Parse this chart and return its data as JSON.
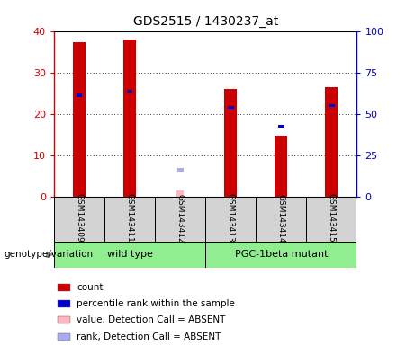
{
  "title": "GDS2515 / 1430237_at",
  "samples": [
    "GSM143409",
    "GSM143411",
    "GSM143412",
    "GSM143413",
    "GSM143414",
    "GSM143415"
  ],
  "count_values": [
    37.2,
    38.0,
    null,
    26.0,
    14.7,
    26.5
  ],
  "rank_values": [
    24.5,
    25.5,
    null,
    21.5,
    17.0,
    22.0
  ],
  "absent_value": [
    null,
    null,
    1.5,
    null,
    null,
    null
  ],
  "absent_rank": [
    null,
    null,
    6.5,
    null,
    null,
    null
  ],
  "bar_color": "#CC0000",
  "rank_color": "#0000CC",
  "absent_bar_color": "#FFB6C1",
  "absent_rank_color": "#AAAAEE",
  "ylim_left": [
    0,
    40
  ],
  "ylim_right": [
    0,
    100
  ],
  "yticks_left": [
    0,
    10,
    20,
    30,
    40
  ],
  "yticks_right": [
    0,
    25,
    50,
    75,
    100
  ],
  "genotype_label": "genotype/variation",
  "wt_label": "wild type",
  "pgc_label": "PGC-1beta mutant",
  "group_color": "#90EE90",
  "sample_box_color": "#D3D3D3",
  "legend_items": [
    {
      "color": "#CC0000",
      "label": "count"
    },
    {
      "color": "#0000CC",
      "label": "percentile rank within the sample"
    },
    {
      "color": "#FFB6C1",
      "label": "value, Detection Call = ABSENT"
    },
    {
      "color": "#AAAAEE",
      "label": "rank, Detection Call = ABSENT"
    }
  ]
}
